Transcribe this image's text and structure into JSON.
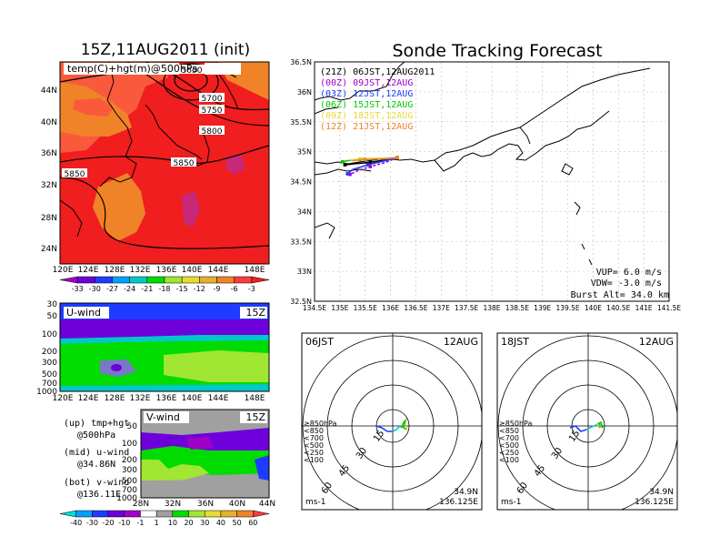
{
  "main_title": "Sonde Tracking Forecast",
  "left_title": "15Z,11AUG2011 (init)",
  "upper_map": {
    "label": "temp(C)+hgt(m)@500hPa",
    "lat_ticks": [
      "44N",
      "40N",
      "36N",
      "32N",
      "28N",
      "24N"
    ],
    "lon_ticks": [
      "120E",
      "124E",
      "128E",
      "132E",
      "136E",
      "140E",
      "144E",
      "148E"
    ],
    "contour_labels": [
      "5700",
      "5750",
      "5800",
      "5850",
      "5850",
      "5650"
    ],
    "colorbar_labels": [
      "-33",
      "-30",
      "-27",
      "-24",
      "-21",
      "-18",
      "-15",
      "-12",
      "-9",
      "-6",
      "-3"
    ],
    "colorbar_colors": [
      "#a000c8",
      "#6e00dc",
      "#1e3cff",
      "#00a0ff",
      "#00c8c8",
      "#00dc00",
      "#a0e632",
      "#e6dc32",
      "#e6af2d",
      "#f08228",
      "#fa3c3c",
      "#f01e1e"
    ]
  },
  "uwind": {
    "label": "U-wind",
    "time": "15Z",
    "p_ticks": [
      "30",
      "50",
      "100",
      "200",
      "300",
      "500",
      "700",
      "1000"
    ],
    "lon_ticks": [
      "120E",
      "124E",
      "128E",
      "132E",
      "136E",
      "140E",
      "144E",
      "148E"
    ]
  },
  "vwind": {
    "label": "V-wind",
    "time": "15Z",
    "p_ticks": [
      "50",
      "100",
      "200",
      "300",
      "500",
      "700",
      "1000"
    ],
    "lat_ticks": [
      "28N",
      "32N",
      "36N",
      "40N",
      "44N"
    ],
    "colorbar_labels": [
      "-40",
      "-30",
      "-20",
      "-10",
      "-1",
      "1",
      "10",
      "20",
      "30",
      "40",
      "50",
      "60"
    ],
    "colorbar_colors": [
      "#00dcdc",
      "#00a0ff",
      "#1e3cff",
      "#6e00dc",
      "#a000c8",
      "#ffffff",
      "#a0a0a0",
      "#00dc00",
      "#a0e632",
      "#e6dc32",
      "#e6af2d",
      "#f08228",
      "#fa3c3c"
    ]
  },
  "notes": [
    {
      "a": "(up) tmp+hgt",
      "b": "@500hPa"
    },
    {
      "a": "(mid) u-wind",
      "b": "@34.86N"
    },
    {
      "a": "(bot) v-wind",
      "b": "@136.11E"
    }
  ],
  "track_map": {
    "lat_ticks": [
      "36.5N",
      "36N",
      "35.5N",
      "35N",
      "34.5N",
      "34N",
      "33.5N",
      "33N",
      "32.5N"
    ],
    "lon_ticks": [
      "134.5E",
      "135E",
      "135.5E",
      "136E",
      "136.5E",
      "137E",
      "137.5E",
      "138E",
      "138.5E",
      "139E",
      "139.5E",
      "140E",
      "140.5E",
      "141E",
      "141.5E"
    ],
    "legend": [
      {
        "label": "(21Z) 06JST,12AUG2011",
        "color": "#000000"
      },
      {
        "label": "(00Z) 09JST,12AUG",
        "color": "#a000c8"
      },
      {
        "label": "(03Z) 12JST,12AUG",
        "color": "#1e3cff"
      },
      {
        "label": "(06Z) 15JST,12AUG",
        "color": "#00c800"
      },
      {
        "label": "(09Z) 18JST,12AUG",
        "color": "#e6dc32"
      },
      {
        "label": "(12Z) 21JST,12AUG",
        "color": "#f08228"
      }
    ],
    "vup": "VUP= 6.0 m/s",
    "vdw": "VDW= -3.0 m/s",
    "burst": "Burst Alt= 34.0 km"
  },
  "hodo_left": {
    "time": "06JST",
    "date": "12AUG",
    "ring_labels": [
      "15",
      "30",
      "45",
      "60"
    ],
    "unit": "ms-1",
    "lat": "34.9N",
    "lon": "136.125E"
  },
  "hodo_right": {
    "time": "18JST",
    "date": "12AUG",
    "ring_labels": [
      "15",
      "30",
      "45",
      "60"
    ],
    "unit": "ms-1",
    "lat": "34.9N",
    "lon": "136.125E"
  },
  "hodo_legend": [
    {
      "label": "≥850hPa",
      "color": "#fa3c3c"
    },
    {
      "label": "<850",
      "color": "#f08228"
    },
    {
      "label": "<700",
      "color": "#e6dc32"
    },
    {
      "label": "<500",
      "color": "#00c800"
    },
    {
      "label": "<250",
      "color": "#00c8c8"
    },
    {
      "label": "<100",
      "color": "#1e3cff"
    }
  ],
  "chart_data": {
    "type": "line",
    "title": "Sonde Tracking Forecast",
    "xlabel": "",
    "ylabel": "",
    "xlim": [
      134.5,
      141.5
    ],
    "ylim": [
      32.5,
      36.5
    ],
    "series": [
      {
        "name": "(21Z) 06JST,12AUG2011",
        "points": [
          [
            136.13,
            34.9
          ],
          [
            135.95,
            34.87
          ],
          [
            135.6,
            34.82
          ],
          [
            135.3,
            34.8
          ],
          [
            135.1,
            34.78
          ]
        ]
      },
      {
        "name": "(00Z) 09JST,12AUG",
        "points": [
          [
            136.13,
            34.9
          ],
          [
            135.9,
            34.82
          ],
          [
            135.6,
            34.75
          ],
          [
            135.35,
            34.68
          ],
          [
            135.2,
            34.62
          ]
        ]
      },
      {
        "name": "(03Z) 12JST,12AUG",
        "points": [
          [
            136.13,
            34.9
          ],
          [
            135.95,
            34.86
          ],
          [
            135.55,
            34.78
          ],
          [
            135.25,
            34.7
          ],
          [
            135.15,
            34.63
          ]
        ]
      },
      {
        "name": "(06Z) 15JST,12AUG",
        "points": [
          [
            136.13,
            34.9
          ],
          [
            135.8,
            34.88
          ],
          [
            135.4,
            34.87
          ],
          [
            135.15,
            34.85
          ],
          [
            135.05,
            34.83
          ]
        ]
      },
      {
        "name": "(09Z) 18JST,12AUG",
        "points": [
          [
            136.13,
            34.9
          ],
          [
            135.85,
            34.89
          ],
          [
            135.45,
            34.88
          ],
          [
            135.2,
            34.86
          ]
        ]
      },
      {
        "name": "(12Z) 21JST,12AUG",
        "points": [
          [
            136.13,
            34.9
          ],
          [
            135.85,
            34.88
          ],
          [
            135.5,
            34.87
          ],
          [
            135.25,
            34.85
          ]
        ]
      }
    ],
    "annotations": [
      "VUP= 6.0 m/s",
      "VDW= -3.0 m/s",
      "Burst Alt= 34.0 km"
    ]
  }
}
